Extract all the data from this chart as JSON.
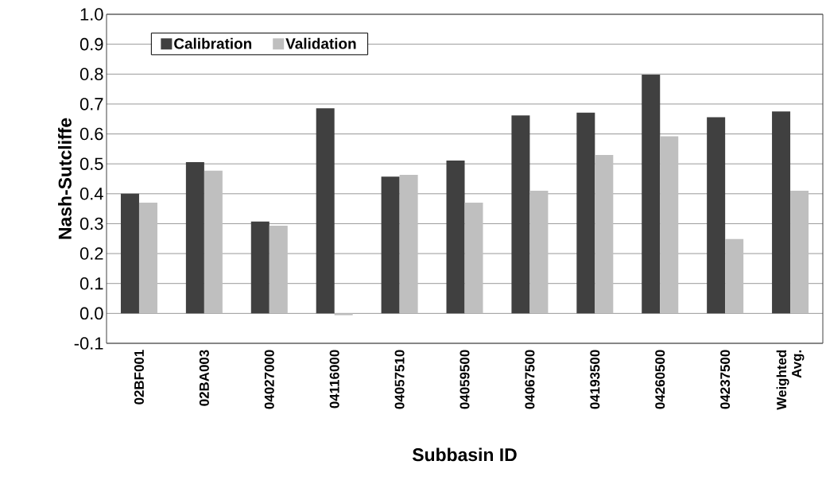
{
  "chart_data": {
    "type": "bar",
    "xlabel": "Subbasin ID",
    "ylabel": "Nash-Sutcliffe",
    "categories": [
      "02BF001",
      "02BA003",
      "04027000",
      "04116000",
      "04057510",
      "04059500",
      "04067500",
      "04193500",
      "04260500",
      "04237500",
      "Weighted Avg."
    ],
    "series": [
      {
        "name": "Calibration",
        "color": "#404040",
        "values": [
          0.4,
          0.506,
          0.307,
          0.686,
          0.457,
          0.511,
          0.662,
          0.671,
          0.798,
          0.656,
          0.675
        ]
      },
      {
        "name": "Validation",
        "color": "#bfbfbf",
        "values": [
          0.37,
          0.477,
          0.293,
          -0.006,
          0.463,
          0.37,
          0.41,
          0.53,
          0.592,
          0.249,
          0.41
        ]
      }
    ],
    "ylim": [
      -0.1,
      1.0
    ],
    "yticks": [
      {
        "value": -0.1,
        "label": "-0.1"
      },
      {
        "value": 0,
        "label": "0.0"
      },
      {
        "value": 0.1,
        "label": "0.1"
      },
      {
        "value": 0.2,
        "label": "0.2"
      },
      {
        "value": 0.3,
        "label": "0.3"
      },
      {
        "value": 0.4,
        "label": "0.4"
      },
      {
        "value": 0.5,
        "label": "0.5"
      },
      {
        "value": 0.6,
        "label": "0.6"
      },
      {
        "value": 0.7,
        "label": "0.7"
      },
      {
        "value": 0.8,
        "label": "0.8"
      },
      {
        "value": 0.9,
        "label": "0.9"
      },
      {
        "value": 1.0,
        "label": "1.0"
      }
    ],
    "grid": "y",
    "legend": "top left"
  }
}
